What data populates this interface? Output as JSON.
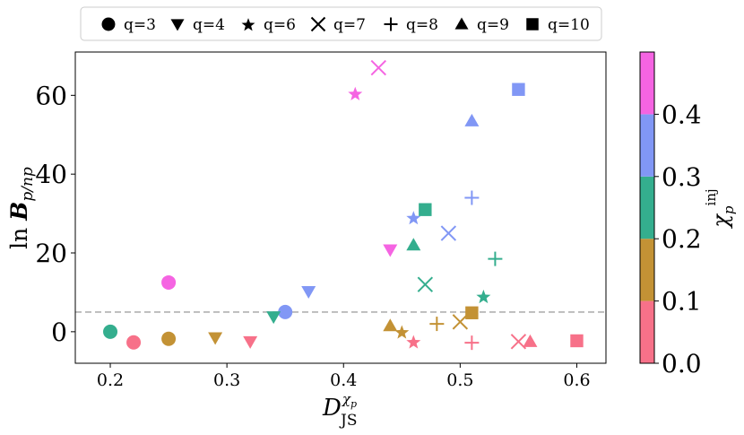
{
  "chart_data": {
    "type": "scatter",
    "xlabel_main": "D",
    "xlabel_sup": "χ",
    "xlabel_sup_sub": "p",
    "xlabel_sub": "JS",
    "ylabel_main": "ln ",
    "ylabel_script": "B",
    "ylabel_sub": "p/np",
    "xlim": [
      0.17,
      0.625
    ],
    "ylim": [
      -8,
      71
    ],
    "xticks": [
      0.2,
      0.3,
      0.4,
      0.5,
      0.6
    ],
    "xtick_labels": [
      "0.2",
      "0.3",
      "0.4",
      "0.5",
      "0.6"
    ],
    "yticks": [
      0,
      20,
      40,
      60
    ],
    "ytick_labels": [
      "0",
      "20",
      "40",
      "60"
    ],
    "reference_line_y": 5,
    "legend": [
      {
        "marker": "circle",
        "label": "q=3"
      },
      {
        "marker": "triangle-down",
        "label": "q=4"
      },
      {
        "marker": "star",
        "label": "q=6"
      },
      {
        "marker": "x",
        "label": "q=7"
      },
      {
        "marker": "plus",
        "label": "q=8"
      },
      {
        "marker": "triangle-up",
        "label": "q=9"
      },
      {
        "marker": "square",
        "label": "q=10"
      }
    ],
    "colorbar": {
      "label_main": "χ",
      "label_sub": "p",
      "label_sup": "inj",
      "range": [
        0.0,
        0.5
      ],
      "ticks": [
        0.0,
        0.1,
        0.2,
        0.3,
        0.4
      ],
      "tick_labels": [
        "0.0",
        "0.1",
        "0.2",
        "0.3",
        "0.4"
      ],
      "bins": [
        {
          "from": 0.0,
          "to": 0.1,
          "color": "#f77189"
        },
        {
          "from": 0.1,
          "to": 0.2,
          "color": "#c39235"
        },
        {
          "from": 0.2,
          "to": 0.3,
          "color": "#34ae8e"
        },
        {
          "from": 0.3,
          "to": 0.4,
          "color": "#8197f5"
        },
        {
          "from": 0.4,
          "to": 0.5,
          "color": "#f564e2"
        }
      ]
    },
    "points": [
      {
        "q": 3,
        "x": 0.2,
        "y": 0.0,
        "chi": 0.25
      },
      {
        "q": 3,
        "x": 0.22,
        "y": -2.7,
        "chi": 0.05
      },
      {
        "q": 3,
        "x": 0.25,
        "y": -1.8,
        "chi": 0.15
      },
      {
        "q": 3,
        "x": 0.25,
        "y": 12.5,
        "chi": 0.45
      },
      {
        "q": 3,
        "x": 0.35,
        "y": 5.0,
        "chi": 0.35
      },
      {
        "q": 4,
        "x": 0.29,
        "y": -1.5,
        "chi": 0.15
      },
      {
        "q": 4,
        "x": 0.32,
        "y": -2.5,
        "chi": 0.05
      },
      {
        "q": 4,
        "x": 0.34,
        "y": 3.8,
        "chi": 0.25
      },
      {
        "q": 4,
        "x": 0.37,
        "y": 10.2,
        "chi": 0.35
      },
      {
        "q": 4,
        "x": 0.44,
        "y": 20.8,
        "chi": 0.45
      },
      {
        "q": 6,
        "x": 0.41,
        "y": 60.5,
        "chi": 0.45
      },
      {
        "q": 6,
        "x": 0.45,
        "y": 0.0,
        "chi": 0.15
      },
      {
        "q": 6,
        "x": 0.46,
        "y": -2.5,
        "chi": 0.05
      },
      {
        "q": 6,
        "x": 0.46,
        "y": 29.0,
        "chi": 0.35
      },
      {
        "q": 6,
        "x": 0.52,
        "y": 9.0,
        "chi": 0.25
      },
      {
        "q": 7,
        "x": 0.43,
        "y": 67.0,
        "chi": 0.45
      },
      {
        "q": 7,
        "x": 0.47,
        "y": 12.0,
        "chi": 0.25
      },
      {
        "q": 7,
        "x": 0.49,
        "y": 25.0,
        "chi": 0.35
      },
      {
        "q": 7,
        "x": 0.5,
        "y": 2.5,
        "chi": 0.15
      },
      {
        "q": 7,
        "x": 0.55,
        "y": -2.5,
        "chi": 0.05
      },
      {
        "q": 8,
        "x": 0.48,
        "y": 2.0,
        "chi": 0.15
      },
      {
        "q": 8,
        "x": 0.51,
        "y": -2.8,
        "chi": 0.05
      },
      {
        "q": 8,
        "x": 0.51,
        "y": 34.0,
        "chi": 0.35
      },
      {
        "q": 8,
        "x": 0.53,
        "y": 18.5,
        "chi": 0.25
      },
      {
        "q": 9,
        "x": 0.44,
        "y": 1.5,
        "chi": 0.15
      },
      {
        "q": 9,
        "x": 0.46,
        "y": 22.0,
        "chi": 0.25
      },
      {
        "q": 9,
        "x": 0.51,
        "y": 53.5,
        "chi": 0.35
      },
      {
        "q": 9,
        "x": 0.56,
        "y": -2.5,
        "chi": 0.05
      },
      {
        "q": 10,
        "x": 0.47,
        "y": 31.0,
        "chi": 0.25
      },
      {
        "q": 10,
        "x": 0.51,
        "y": 4.8,
        "chi": 0.15
      },
      {
        "q": 10,
        "x": 0.55,
        "y": 61.5,
        "chi": 0.35
      },
      {
        "q": 10,
        "x": 0.6,
        "y": -2.3,
        "chi": 0.05
      }
    ]
  }
}
